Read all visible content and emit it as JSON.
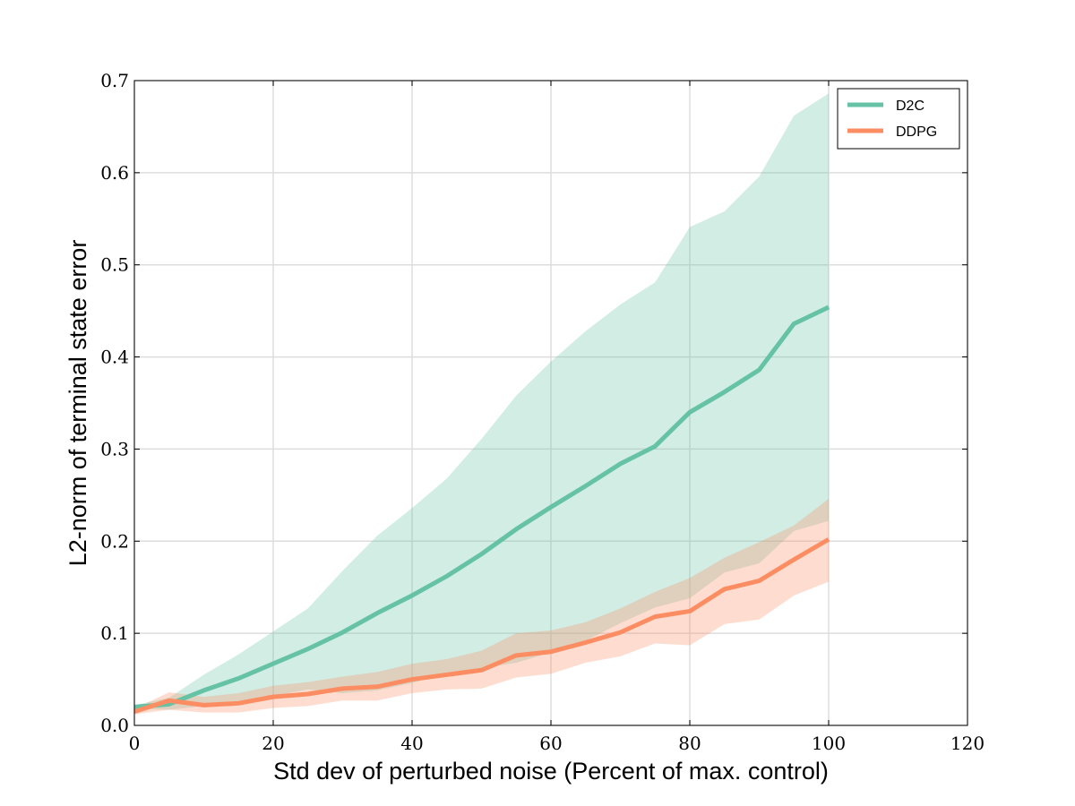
{
  "chart_data": {
    "type": "line",
    "title": "",
    "xlabel": "Std dev of perturbed noise (Percent of max. control)",
    "ylabel": "L2-norm of terminal state error",
    "xlim": [
      0,
      120
    ],
    "ylim": [
      0.0,
      0.7
    ],
    "xticks": [
      0,
      20,
      40,
      60,
      80,
      100,
      120
    ],
    "xtick_labels": [
      "0",
      "20",
      "40",
      "60",
      "80",
      "100",
      "120"
    ],
    "yticks": [
      0.0,
      0.1,
      0.2,
      0.3,
      0.4,
      0.5,
      0.6,
      0.7
    ],
    "ytick_labels": [
      "0.0",
      "0.1",
      "0.2",
      "0.3",
      "0.4",
      "0.5",
      "0.6",
      "0.7"
    ],
    "grid": true,
    "legend_position": "top-right",
    "x": [
      0,
      5,
      10,
      15,
      20,
      25,
      30,
      35,
      40,
      45,
      50,
      55,
      60,
      65,
      70,
      75,
      80,
      85,
      90,
      95,
      100
    ],
    "series": [
      {
        "name": "D2C",
        "color": "#66c2a5",
        "band_color": "#66c2a5",
        "values": [
          0.02,
          0.023,
          0.038,
          0.051,
          0.067,
          0.083,
          0.101,
          0.122,
          0.141,
          0.162,
          0.186,
          0.213,
          0.237,
          0.26,
          0.284,
          0.303,
          0.34,
          0.362,
          0.386,
          0.436,
          0.454
        ],
        "upper": [
          0.022,
          0.03,
          0.055,
          0.077,
          0.102,
          0.127,
          0.168,
          0.206,
          0.236,
          0.268,
          0.311,
          0.358,
          0.395,
          0.428,
          0.457,
          0.481,
          0.541,
          0.558,
          0.596,
          0.662,
          0.686
        ],
        "lower": [
          0.018,
          0.017,
          0.021,
          0.025,
          0.032,
          0.039,
          0.035,
          0.038,
          0.046,
          0.056,
          0.062,
          0.068,
          0.079,
          0.092,
          0.111,
          0.128,
          0.138,
          0.166,
          0.176,
          0.211,
          0.222
        ]
      },
      {
        "name": "DDPG",
        "color": "#fc8d62",
        "band_color": "#fc8d62",
        "values": [
          0.015,
          0.027,
          0.022,
          0.024,
          0.031,
          0.034,
          0.04,
          0.042,
          0.05,
          0.055,
          0.06,
          0.076,
          0.08,
          0.09,
          0.101,
          0.118,
          0.124,
          0.148,
          0.157,
          0.18,
          0.202
        ],
        "upper": [
          0.018,
          0.036,
          0.031,
          0.035,
          0.043,
          0.047,
          0.053,
          0.058,
          0.067,
          0.072,
          0.081,
          0.1,
          0.103,
          0.112,
          0.127,
          0.145,
          0.16,
          0.182,
          0.199,
          0.217,
          0.246
        ],
        "lower": [
          0.012,
          0.017,
          0.014,
          0.014,
          0.019,
          0.021,
          0.027,
          0.027,
          0.035,
          0.039,
          0.04,
          0.052,
          0.056,
          0.068,
          0.075,
          0.089,
          0.087,
          0.11,
          0.115,
          0.141,
          0.156
        ]
      }
    ]
  }
}
